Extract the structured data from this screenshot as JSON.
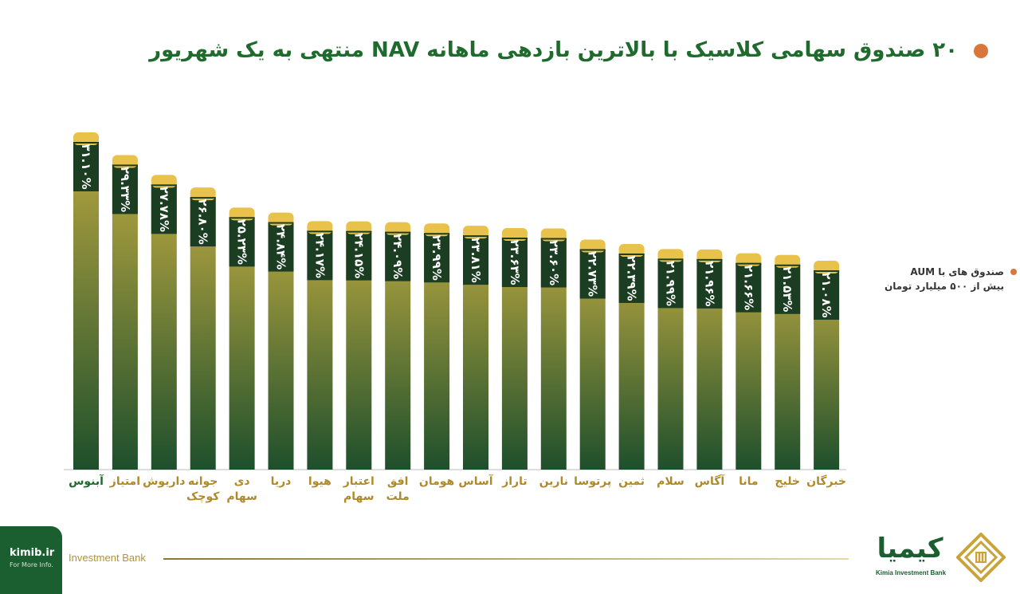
{
  "header": {
    "title": "۲۰ صندوق سهامی کلاسیک با بالاترین بازدهی ماهانه NAV منتهی به یک شهریور"
  },
  "legend": {
    "line1": "صندوق های با AUM",
    "line2": "بیش از ۵۰۰ میلیارد تومان"
  },
  "footer": {
    "site_url": "kimib.ir",
    "site_sub": "For More Info.",
    "label": "Investment Bank",
    "logo_word": "کیمیا",
    "logo_sub": "Kimia Investment Bank"
  },
  "colors": {
    "title": "#1f6b2e",
    "accent_dot": "#d9773a",
    "bar_top": "#b7a640",
    "bar_bottom": "#1e4f2c",
    "label_band": "#1b3d22",
    "cap": "#e8c24a",
    "category_gold": "#b08a2a",
    "category_green": "#1f6b2e"
  },
  "chart_data": {
    "type": "bar",
    "title": "۲۰ صندوق سهامی کلاسیک با بالاترین بازدهی ماهانه NAV منتهی به یک شهریور",
    "unit": "%",
    "categories": [
      [
        "آبنوس"
      ],
      [
        "امتیاز"
      ],
      [
        "داریوش"
      ],
      [
        "جوانه",
        "کوچک"
      ],
      [
        "دی",
        "سهام"
      ],
      [
        "دریا"
      ],
      [
        "هیوا"
      ],
      [
        "اعتبار",
        "سهام"
      ],
      [
        "افق",
        "ملت"
      ],
      [
        "هومان"
      ],
      [
        "آساس"
      ],
      [
        "تاراز"
      ],
      [
        "نارین"
      ],
      [
        "پرتوسا"
      ],
      [
        "ثمین"
      ],
      [
        "سلام"
      ],
      [
        "آگاس"
      ],
      [
        "مانا"
      ],
      [
        "خلیج"
      ],
      [
        "خبرگان"
      ]
    ],
    "values": [
      31.1,
      29.33,
      27.78,
      26.8,
      25.23,
      24.84,
      24.17,
      24.15,
      24.09,
      23.99,
      23.81,
      23.63,
      23.6,
      22.73,
      22.39,
      21.99,
      21.96,
      21.66,
      21.53,
      21.08
    ],
    "value_labels": [
      "۳۱.۱۰%",
      "۲۹.۳۳%",
      "۲۷.۷۸%",
      "۲۶.۸۰%",
      "۲۵.۲۳%",
      "۲۴.۸۴%",
      "۲۴.۱۷%",
      "۲۴.۱۵%",
      "۲۴.۰۹%",
      "۲۳.۹۹%",
      "۲۳.۸۱%",
      "۲۳.۶۳%",
      "۲۳.۶۰%",
      "۲۲.۷۳%",
      "۲۲.۳۹%",
      "۲۱.۹۹%",
      "۲۱.۹۶%",
      "۲۱.۶۶%",
      "۲۱.۵۳%",
      "۲۱.۰۸%"
    ],
    "highlighted_category_index": 0,
    "grid": false,
    "legend_position": "right"
  }
}
